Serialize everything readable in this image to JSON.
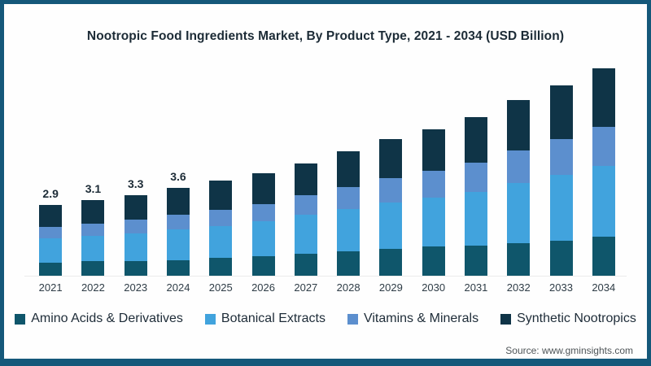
{
  "title": "Nootropic Food Ingredients Market, By Product Type, 2021 - 2034 (USD Billion)",
  "source": "Source: www.gminsights.com",
  "colors": {
    "frame_border": "#15587a",
    "amino_acids": "#0f566b",
    "botanical_extracts": "#41a3dd",
    "vitamins_minerals": "#5c8fce",
    "synthetic_nootropics": "#0f3447"
  },
  "chart_data": {
    "type": "bar",
    "stacked": true,
    "title": "Nootropic Food Ingredients Market, By Product Type, 2021 - 2034 (USD Billion)",
    "categories": [
      "2021",
      "2022",
      "2023",
      "2024",
      "2025",
      "2026",
      "2027",
      "2028",
      "2029",
      "2030",
      "2031",
      "2032",
      "2033",
      "2034"
    ],
    "series": [
      {
        "name": "Amino Acids & Derivatives",
        "color": "#0f566b",
        "values": [
          0.55,
          0.6,
          0.6,
          0.65,
          0.75,
          0.8,
          0.9,
          1.0,
          1.1,
          1.2,
          1.25,
          1.35,
          1.45,
          1.6
        ]
      },
      {
        "name": "Botanical Extracts",
        "color": "#41a3dd",
        "values": [
          1.0,
          1.05,
          1.15,
          1.25,
          1.3,
          1.45,
          1.6,
          1.75,
          1.9,
          2.0,
          2.2,
          2.45,
          2.7,
          2.9
        ]
      },
      {
        "name": "Vitamins & Minerals",
        "color": "#5c8fce",
        "values": [
          0.45,
          0.5,
          0.55,
          0.6,
          0.65,
          0.7,
          0.8,
          0.9,
          1.0,
          1.1,
          1.2,
          1.35,
          1.45,
          1.6
        ]
      },
      {
        "name": "Synthetic Nootropics",
        "color": "#0f3447",
        "values": [
          0.9,
          0.95,
          1.0,
          1.1,
          1.2,
          1.25,
          1.3,
          1.45,
          1.6,
          1.7,
          1.85,
          2.05,
          2.2,
          2.4
        ]
      }
    ],
    "totals": [
      2.9,
      3.1,
      3.3,
      3.6,
      3.9,
      4.2,
      4.6,
      5.1,
      5.6,
      6.0,
      6.5,
      7.2,
      7.8,
      8.5
    ],
    "bar_labels": [
      "2.9",
      "3.1",
      "3.3",
      "3.6",
      "",
      "",
      "",
      "",
      "",
      "",
      "",
      "",
      "",
      ""
    ],
    "xlabel": "",
    "ylabel": "",
    "y_axis_shown": false,
    "grid": false,
    "legend_position": "bottom"
  }
}
